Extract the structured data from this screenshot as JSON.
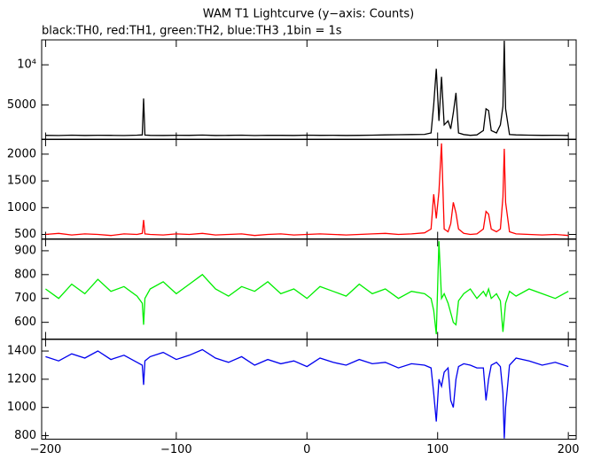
{
  "chart_data": [
    {
      "type": "line",
      "title": "WAM T1 Lightcurve (y−axis: Counts)",
      "subtitle": "black:TH0, red:TH1, green:TH2, blue:TH3 ,1bin = 1s",
      "x": [
        -200,
        -190,
        -180,
        -170,
        -160,
        -150,
        -140,
        -130,
        -126,
        -125,
        -124,
        -120,
        -110,
        -100,
        -90,
        -80,
        -70,
        -60,
        -50,
        -40,
        -30,
        -20,
        -10,
        0,
        10,
        20,
        30,
        40,
        50,
        60,
        70,
        80,
        90,
        95,
        97,
        99,
        101,
        103,
        105,
        108,
        110,
        112,
        114,
        116,
        120,
        125,
        130,
        135,
        137,
        139,
        141,
        145,
        148,
        150,
        151,
        152,
        155,
        160,
        170,
        180,
        190,
        200
      ],
      "xlim": [
        -203,
        206
      ],
      "ylim": [
        667,
        13111
      ],
      "yticks": [
        {
          "value": 5000,
          "label": "5000"
        },
        {
          "value": 10000,
          "label": "10⁴"
        }
      ],
      "series": [
        {
          "name": "TH0",
          "color": "#000000",
          "values": [
            1200,
            1180,
            1220,
            1190,
            1210,
            1200,
            1180,
            1220,
            1250,
            5800,
            1230,
            1200,
            1190,
            1210,
            1200,
            1230,
            1190,
            1200,
            1220,
            1180,
            1210,
            1200,
            1190,
            1220,
            1200,
            1210,
            1190,
            1200,
            1220,
            1250,
            1280,
            1300,
            1320,
            1500,
            5000,
            9500,
            3000,
            8500,
            2500,
            3000,
            2000,
            4000,
            6500,
            1500,
            1300,
            1200,
            1250,
            1800,
            4500,
            4300,
            1800,
            1500,
            2500,
            4800,
            13000,
            4500,
            1300,
            1250,
            1220,
            1200,
            1210,
            1190
          ]
        }
      ]
    },
    {
      "type": "line",
      "x": [
        -200,
        -190,
        -180,
        -170,
        -160,
        -150,
        -140,
        -130,
        -126,
        -125,
        -124,
        -120,
        -110,
        -100,
        -90,
        -80,
        -70,
        -60,
        -50,
        -40,
        -30,
        -20,
        -10,
        0,
        10,
        20,
        30,
        40,
        50,
        60,
        70,
        80,
        90,
        95,
        97,
        99,
        101,
        103,
        105,
        108,
        110,
        112,
        114,
        116,
        120,
        125,
        130,
        135,
        137,
        139,
        141,
        145,
        148,
        150,
        151,
        152,
        155,
        160,
        170,
        180,
        190,
        200
      ],
      "xlim": [
        -203,
        206
      ],
      "ylim": [
        417,
        2280
      ],
      "yticks": [
        500,
        1000,
        1500,
        2000
      ],
      "series": [
        {
          "name": "TH1",
          "color": "#ff0000",
          "values": [
            500,
            520,
            490,
            510,
            500,
            480,
            510,
            500,
            520,
            770,
            510,
            500,
            490,
            510,
            500,
            520,
            490,
            500,
            510,
            480,
            500,
            510,
            490,
            500,
            510,
            500,
            490,
            500,
            510,
            520,
            500,
            510,
            530,
            600,
            1250,
            800,
            1300,
            2200,
            600,
            550,
            700,
            1100,
            900,
            600,
            520,
            500,
            510,
            600,
            930,
            880,
            600,
            550,
            600,
            1200,
            2100,
            1100,
            550,
            510,
            500,
            490,
            500,
            480
          ]
        }
      ]
    },
    {
      "type": "line",
      "x": [
        -200,
        -190,
        -180,
        -170,
        -160,
        -150,
        -140,
        -130,
        -126,
        -125,
        -124,
        -120,
        -110,
        -100,
        -90,
        -80,
        -70,
        -60,
        -50,
        -40,
        -30,
        -20,
        -10,
        0,
        10,
        20,
        30,
        40,
        50,
        60,
        70,
        80,
        90,
        95,
        97,
        99,
        101,
        103,
        105,
        108,
        110,
        112,
        114,
        116,
        120,
        125,
        130,
        135,
        137,
        139,
        141,
        145,
        148,
        150,
        151,
        152,
        155,
        160,
        170,
        180,
        190,
        200
      ],
      "xlim": [
        -203,
        206
      ],
      "ylim": [
        530,
        948
      ],
      "yticks": [
        600,
        700,
        800,
        900
      ],
      "series": [
        {
          "name": "TH2",
          "color": "#00ee00",
          "values": [
            740,
            700,
            760,
            720,
            780,
            730,
            750,
            710,
            680,
            590,
            700,
            740,
            770,
            720,
            760,
            800,
            740,
            710,
            750,
            730,
            770,
            720,
            740,
            700,
            750,
            730,
            710,
            760,
            720,
            740,
            700,
            730,
            720,
            700,
            650,
            550,
            940,
            700,
            720,
            680,
            640,
            600,
            590,
            690,
            720,
            740,
            700,
            730,
            710,
            740,
            700,
            720,
            690,
            560,
            620,
            680,
            730,
            710,
            740,
            720,
            700,
            730
          ]
        }
      ]
    },
    {
      "type": "line",
      "x": [
        -200,
        -190,
        -180,
        -170,
        -160,
        -150,
        -140,
        -130,
        -126,
        -125,
        -124,
        -120,
        -110,
        -100,
        -90,
        -80,
        -70,
        -60,
        -50,
        -40,
        -30,
        -20,
        -10,
        0,
        10,
        20,
        30,
        40,
        50,
        60,
        70,
        80,
        90,
        95,
        97,
        99,
        101,
        103,
        105,
        108,
        110,
        112,
        114,
        116,
        120,
        125,
        130,
        135,
        137,
        139,
        141,
        145,
        148,
        150,
        151,
        152,
        155,
        160,
        170,
        180,
        190,
        200
      ],
      "xlim": [
        -203,
        206
      ],
      "ylim": [
        775,
        1482
      ],
      "xticks": [
        {
          "value": -200,
          "label": "−200"
        },
        {
          "value": -100,
          "label": "−100"
        },
        0,
        100,
        200
      ],
      "yticks": [
        800,
        1000,
        1200,
        1400
      ],
      "series": [
        {
          "name": "TH3",
          "color": "#0000ee",
          "values": [
            1360,
            1330,
            1380,
            1350,
            1400,
            1340,
            1370,
            1320,
            1300,
            1160,
            1330,
            1360,
            1390,
            1340,
            1370,
            1410,
            1350,
            1320,
            1360,
            1300,
            1340,
            1310,
            1330,
            1290,
            1350,
            1320,
            1300,
            1340,
            1310,
            1320,
            1280,
            1310,
            1300,
            1280,
            1100,
            900,
            1200,
            1150,
            1250,
            1280,
            1050,
            1000,
            1200,
            1290,
            1310,
            1300,
            1280,
            1280,
            1050,
            1200,
            1300,
            1320,
            1290,
            1100,
            780,
            1000,
            1300,
            1350,
            1330,
            1300,
            1320,
            1290
          ]
        }
      ]
    }
  ]
}
